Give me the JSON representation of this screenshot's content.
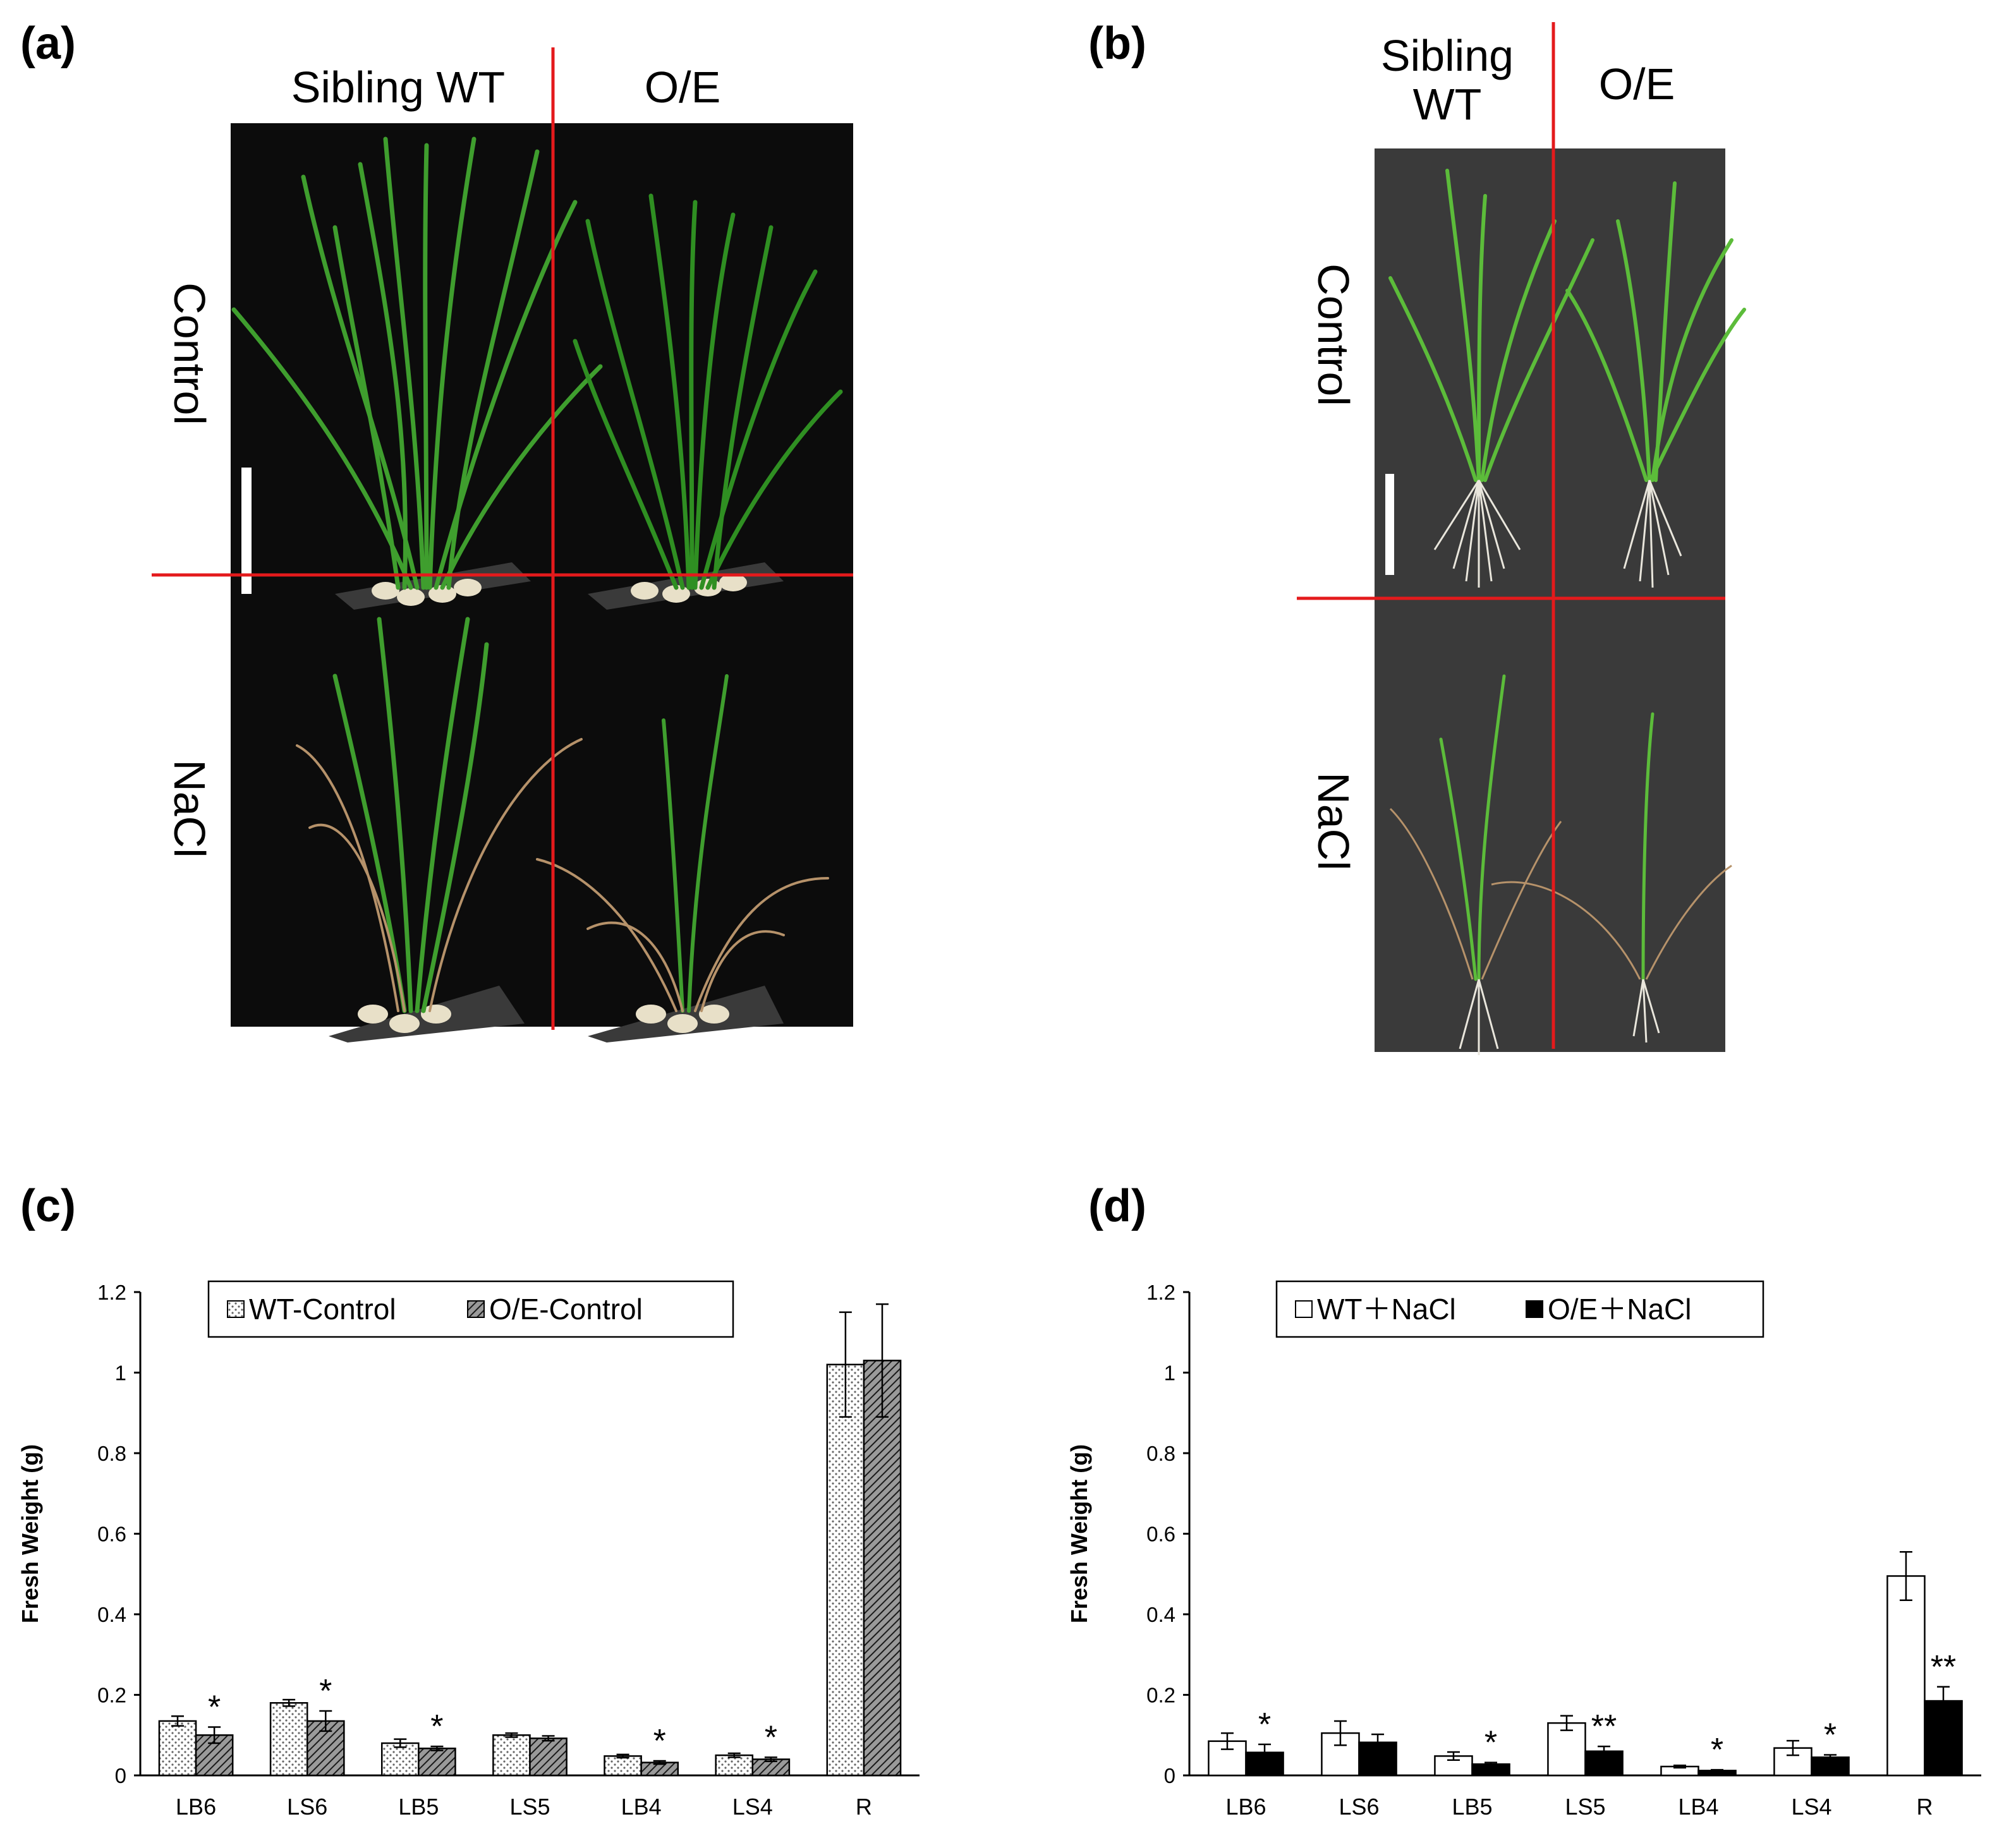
{
  "panels": {
    "a": {
      "label": "(a)",
      "columns": [
        "Sibling WT",
        "O/E"
      ],
      "rows": [
        "Control",
        "NaCl"
      ]
    },
    "b": {
      "label": "(b)",
      "columns": [
        "Sibling\nWT",
        "O/E"
      ],
      "rows": [
        "Control",
        "NaCl"
      ]
    },
    "c": {
      "label": "(c)"
    },
    "d": {
      "label": "(d)"
    }
  },
  "colors": {
    "divider": "#e41a1c",
    "photo_bg_a": "#0c0c0c",
    "photo_bg_b": "#3a3a3a",
    "leaf": "#3f9e2e",
    "dry_leaf": "#b6926a"
  },
  "chart_data": [
    {
      "type": "bar",
      "panel": "c",
      "title": "",
      "xlabel": "",
      "ylabel": "Fresh Weight (g)",
      "ylim": [
        0,
        1.2
      ],
      "yticks": [
        "0",
        "0.2",
        "0.4",
        "0.6",
        "0.8",
        "1",
        "1.2"
      ],
      "categories": [
        "LB6",
        "LS6",
        "LB5",
        "LS5",
        "LB4",
        "LS4",
        "R"
      ],
      "legend_position": "top-center",
      "series": [
        {
          "name": "WT-Control",
          "fill": "dotted",
          "values": [
            0.135,
            0.18,
            0.08,
            0.1,
            0.048,
            0.05,
            1.02
          ],
          "errors": [
            0.012,
            0.008,
            0.01,
            0.005,
            0.004,
            0.005,
            0.13
          ]
        },
        {
          "name": "O/E-Control",
          "fill": "hatched",
          "values": [
            0.1,
            0.135,
            0.067,
            0.092,
            0.032,
            0.04,
            1.03
          ],
          "errors": [
            0.02,
            0.025,
            0.005,
            0.006,
            0.004,
            0.005,
            0.14
          ]
        }
      ],
      "annotations": [
        {
          "category": "LB6",
          "text": "*"
        },
        {
          "category": "LS6",
          "text": "*"
        },
        {
          "category": "LB5",
          "text": "*"
        },
        {
          "category": "LB4",
          "text": "*"
        },
        {
          "category": "LS4",
          "text": "*"
        }
      ]
    },
    {
      "type": "bar",
      "panel": "d",
      "title": "",
      "xlabel": "",
      "ylabel": "Fresh Weight (g)",
      "ylim": [
        0,
        1.2
      ],
      "yticks": [
        "0",
        "0.2",
        "0.4",
        "0.6",
        "0.8",
        "1",
        "1.2"
      ],
      "categories": [
        "LB6",
        "LS6",
        "LB5",
        "LS5",
        "LB4",
        "LS4",
        "R"
      ],
      "legend_position": "top-center",
      "series": [
        {
          "name": "WT＋NaCl",
          "fill": "white",
          "values": [
            0.085,
            0.105,
            0.048,
            0.13,
            0.022,
            0.068,
            0.495
          ],
          "errors": [
            0.02,
            0.03,
            0.01,
            0.018,
            0.003,
            0.018,
            0.06
          ]
        },
        {
          "name": "O/E＋NaCl",
          "fill": "black",
          "values": [
            0.057,
            0.082,
            0.028,
            0.06,
            0.012,
            0.045,
            0.185
          ],
          "errors": [
            0.02,
            0.02,
            0.004,
            0.012,
            0.002,
            0.006,
            0.035
          ]
        }
      ],
      "annotations": [
        {
          "category": "LB6",
          "text": "*"
        },
        {
          "category": "LB5",
          "text": "*"
        },
        {
          "category": "LS5",
          "text": "**"
        },
        {
          "category": "LB4",
          "text": "*"
        },
        {
          "category": "LS4",
          "text": "*"
        },
        {
          "category": "R",
          "text": "**"
        }
      ]
    }
  ]
}
